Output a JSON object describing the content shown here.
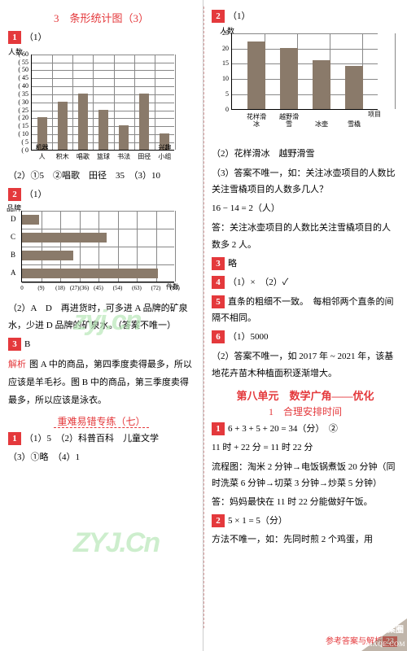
{
  "left": {
    "title": "3　条形统计图（3）",
    "q1": {
      "label": "1",
      "p1": "（1）",
      "chart": {
        "type": "bar",
        "ylabel": "人数",
        "ymax": 60,
        "ystep": 5,
        "categories": [
          "机器人",
          "积木",
          "唱歌",
          "篮球",
          "书法",
          "田径",
          "兴趣小组"
        ],
        "xaxis_label": "",
        "values": [
          20,
          30,
          35,
          25,
          15,
          35,
          10
        ],
        "bar_color": "#8a7a6a",
        "grid_color": "#888888"
      },
      "p2": "（2）①5　②唱歌　田径　35　（3）10"
    },
    "q2": {
      "label": "2",
      "p1": "（1）",
      "chart": {
        "type": "hbar",
        "ylabel": "品牌",
        "xlabel": "件数",
        "yticks": [
          "D",
          "C",
          "B",
          "A"
        ],
        "values_for_y": {
          "D": 9,
          "C": 45,
          "B": 27,
          "A": 72
        },
        "xticks": [
          "0",
          "(9)",
          "(18)",
          "(27)(36)",
          "(45)",
          "(54)",
          "(63)",
          "(72)",
          "(81)"
        ],
        "xmax": 81,
        "bar_color": "#8a7a6a",
        "grid_color": "#888888"
      },
      "p2": "（2）A　D　再进货时，可多进 A 品牌的矿泉水，少进 D 品牌的矿泉水。（答案不唯一）"
    },
    "q3": {
      "label": "3",
      "ans": "B"
    },
    "analysis_label": "解析",
    "analysis_text": "图 A 中的商品，第四季度卖得最多，所以应该是羊毛衫。图 B 中的商品，第三季度卖得最多，所以应该是泳衣。",
    "hard": {
      "title": "重难易错专练（七）",
      "q1": {
        "label": "1",
        "text": "（1）5　（2）科普百科　儿童文学"
      },
      "q1b": "（3）①略　（4）1"
    }
  },
  "right": {
    "q2": {
      "label": "2",
      "p1": "（1）",
      "chart": {
        "type": "bar",
        "ylabel": "人数",
        "ymax": 25,
        "ystep": 5,
        "categories": [
          "花样滑冰",
          "越野滑雪",
          "冰壶",
          "雪橇"
        ],
        "xaxis_label": "项目",
        "values": [
          22,
          20,
          16,
          14
        ],
        "bar_color": "#8a7a6a",
        "grid_color": "#888888"
      },
      "p2": "（2）花样滑冰　越野滑雪",
      "p3": "（3）答案不唯一，如：关注冰壶项目的人数比关注雪橇项目的人数多几人？",
      "p4": "16 − 14 = 2（人）",
      "p5": "答：关注冰壶项目的人数比关注雪橇项目的人数多 2 人。"
    },
    "q3": {
      "label": "3",
      "text": "略"
    },
    "q4": {
      "label": "4",
      "text": "（1）×　（2）✓"
    },
    "q5": {
      "label": "5",
      "text": "直条的粗细不一致。　每相邻两个直条的间隔不相同。"
    },
    "q6": {
      "label": "6",
      "text1": "（1）5000",
      "text2": "（2）答案不唯一，如 2017 年 ~ 2021 年，该基地花卉苗木种植面积逐渐增大。"
    },
    "unit8": {
      "title": "第八单元　数学广角——优化",
      "sub": "1　合理安排时间"
    },
    "u1": {
      "label": "1",
      "l1": "6 + 3 + 5 + 20 = 34（分）　②",
      "l2": "11 时 + 22 分 = 11 时 22 分",
      "l3": "流程图：淘米 2 分钟→电饭锅煮饭 20 分钟（同时洗菜 6 分钟→切菜 3 分钟→炒菜 5 分钟）",
      "l4": "答：妈妈最快在 11 时 22 分能做好午饭。"
    },
    "u2": {
      "label": "2",
      "l1": "5 × 1 = 5（分）",
      "l2": "方法不唯一，如：先同时煎 2 个鸡蛋，用"
    }
  },
  "footer": {
    "text": "参考答案与解析",
    "page": "23"
  },
  "watermarks": {
    "w1": "zyj.cn",
    "w2": "ZYJ.Cn"
  },
  "badge": {
    "t1": "答案圈",
    "t2": "MXQE.COM"
  }
}
